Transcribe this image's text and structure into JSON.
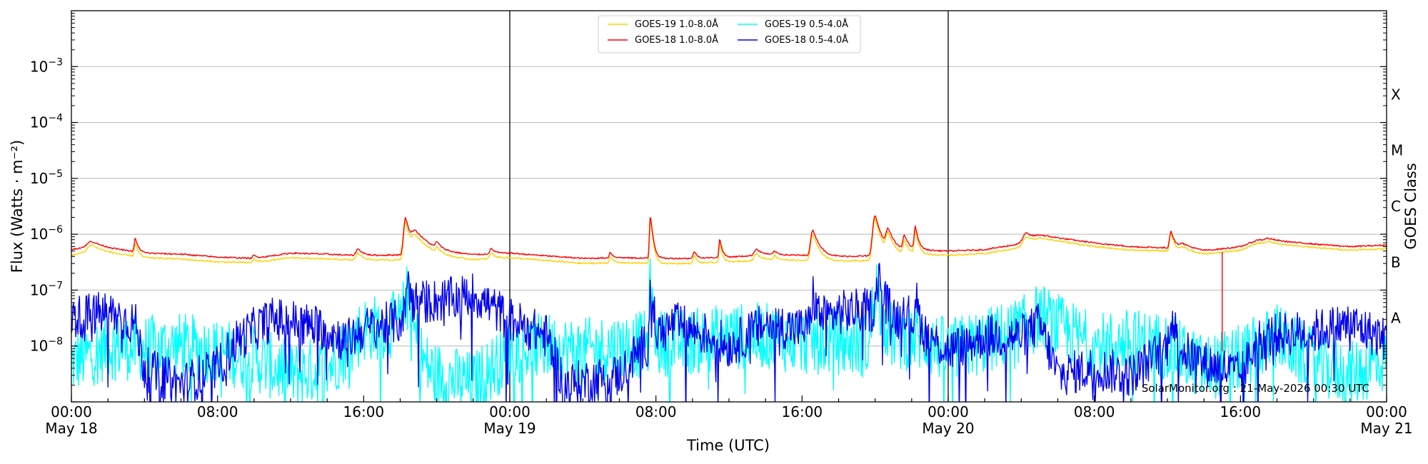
{
  "chart_data": {
    "type": "line",
    "ylabel": "Flux (Watts · m⁻²)",
    "xlabel": "Time (UTC)",
    "right_ylabel": "GOES Class",
    "y_scale": "log",
    "ylim": [
      1e-09,
      0.01
    ],
    "xlim_hours": [
      0,
      72
    ],
    "grid": "horizontal at decades",
    "legend_position": "top-center",
    "y_ticks": [
      {
        "exp": -3,
        "mant": "10",
        "sup": "−3"
      },
      {
        "exp": -4,
        "mant": "10",
        "sup": "−4"
      },
      {
        "exp": -5,
        "mant": "10",
        "sup": "−5"
      },
      {
        "exp": -6,
        "mant": "10",
        "sup": "−6"
      },
      {
        "exp": -7,
        "mant": "10",
        "sup": "−7"
      },
      {
        "exp": -8,
        "mant": "10",
        "sup": "−8"
      }
    ],
    "x_ticks": [
      {
        "hour": 0,
        "time": "00:00",
        "date": "May 18"
      },
      {
        "hour": 8,
        "time": "08:00",
        "date": ""
      },
      {
        "hour": 16,
        "time": "16:00",
        "date": ""
      },
      {
        "hour": 24,
        "time": "00:00",
        "date": "May 19"
      },
      {
        "hour": 32,
        "time": "08:00",
        "date": ""
      },
      {
        "hour": 40,
        "time": "16:00",
        "date": ""
      },
      {
        "hour": 48,
        "time": "00:00",
        "date": "May 20"
      },
      {
        "hour": 56,
        "time": "08:00",
        "date": ""
      },
      {
        "hour": 64,
        "time": "16:00",
        "date": ""
      },
      {
        "hour": 72,
        "time": "00:00",
        "date": "May 21"
      }
    ],
    "day_boundaries_hours": [
      24,
      48
    ],
    "goes_classes": [
      {
        "label": "A",
        "exp": -7.5
      },
      {
        "label": "B",
        "exp": -6.5
      },
      {
        "label": "C",
        "exp": -5.5
      },
      {
        "label": "M",
        "exp": -4.5
      },
      {
        "label": "X",
        "exp": -3.5
      }
    ],
    "credit": "SolarMonitor.org : 21-May-2026 00:30 UTC",
    "series": [
      {
        "name": "GOES-19 1.0-8.0Å",
        "color": "#ffd000",
        "baseline": [
          [
            0,
            4.2e-07
          ],
          [
            1,
            5e-07
          ],
          [
            2,
            4.6e-07
          ],
          [
            4,
            3.8e-07
          ],
          [
            6,
            3.6e-07
          ],
          [
            8,
            3.2e-07
          ],
          [
            10,
            3.1e-07
          ],
          [
            12,
            3.8e-07
          ],
          [
            14,
            3.6e-07
          ],
          [
            16,
            3.4e-07
          ],
          [
            18,
            3.5e-07
          ],
          [
            19,
            4.3e-07
          ],
          [
            22,
            3.5e-07
          ],
          [
            24,
            3.8e-07
          ],
          [
            26,
            3.4e-07
          ],
          [
            28,
            3e-07
          ],
          [
            30,
            3.1e-07
          ],
          [
            32,
            3e-07
          ],
          [
            34,
            3e-07
          ],
          [
            36,
            3.2e-07
          ],
          [
            38,
            3.5e-07
          ],
          [
            40,
            3.4e-07
          ],
          [
            42,
            3.3e-07
          ],
          [
            44,
            3.4e-07
          ],
          [
            46,
            4.5e-07
          ],
          [
            48,
            4.2e-07
          ],
          [
            50,
            4.5e-07
          ],
          [
            52,
            5.8e-07
          ],
          [
            53,
            8.5e-07
          ],
          [
            56,
            6e-07
          ],
          [
            58,
            5.2e-07
          ],
          [
            60,
            5e-07
          ],
          [
            62,
            4.3e-07
          ],
          [
            64,
            5.2e-07
          ],
          [
            65,
            7e-07
          ],
          [
            68,
            5.8e-07
          ],
          [
            70,
            5.2e-07
          ],
          [
            72,
            5.5e-07
          ]
        ],
        "peaks": [
          [
            1.1,
            6.5e-07,
            0.5
          ],
          [
            3.5,
            7e-07,
            0.15
          ],
          [
            10,
            3.6e-07,
            0.2
          ],
          [
            15.7,
            4.6e-07,
            0.3
          ],
          [
            18.3,
            1.7e-06,
            0.25
          ],
          [
            18.8,
            1e-06,
            0.6
          ],
          [
            20,
            6e-07,
            0.2
          ],
          [
            23,
            4.6e-07,
            0.25
          ],
          [
            29.5,
            4e-07,
            0.15
          ],
          [
            31.7,
            1.9e-06,
            0.12
          ],
          [
            34.1,
            4.2e-07,
            0.15
          ],
          [
            35.5,
            7.5e-07,
            0.12
          ],
          [
            37.5,
            4.5e-07,
            0.3
          ],
          [
            38.5,
            4.2e-07,
            0.2
          ],
          [
            40.6,
            1e-06,
            0.3
          ],
          [
            44,
            1.9e-06,
            0.3
          ],
          [
            44.7,
            1.1e-06,
            0.3
          ],
          [
            45.6,
            8e-07,
            0.2
          ],
          [
            46.2,
            1.2e-06,
            0.15
          ],
          [
            52.3,
            9e-07,
            0.5
          ],
          [
            60.2,
            1.05e-06,
            0.2
          ],
          [
            60.8,
            6e-07,
            0.5
          ],
          [
            65.5,
            7.5e-07,
            0.4
          ]
        ]
      },
      {
        "name": "GOES-18 1.0-8.0Å",
        "color": "#ff0000",
        "baseline": [
          [
            0,
            5.3e-07
          ],
          [
            1,
            6.2e-07
          ],
          [
            2,
            5.6e-07
          ],
          [
            4,
            4.6e-07
          ],
          [
            6,
            4.4e-07
          ],
          [
            8,
            3.9e-07
          ],
          [
            10,
            3.7e-07
          ],
          [
            12,
            4.6e-07
          ],
          [
            14,
            4.4e-07
          ],
          [
            16,
            4.1e-07
          ],
          [
            18,
            4.3e-07
          ],
          [
            19,
            5.2e-07
          ],
          [
            22,
            4.3e-07
          ],
          [
            24,
            4.6e-07
          ],
          [
            26,
            4.1e-07
          ],
          [
            28,
            3.7e-07
          ],
          [
            30,
            3.8e-07
          ],
          [
            32,
            3.7e-07
          ],
          [
            34,
            3.7e-07
          ],
          [
            36,
            3.9e-07
          ],
          [
            38,
            4.3e-07
          ],
          [
            40,
            4.2e-07
          ],
          [
            42,
            4e-07
          ],
          [
            44,
            4.1e-07
          ],
          [
            46,
            5.3e-07
          ],
          [
            48,
            5e-07
          ],
          [
            50,
            5.3e-07
          ],
          [
            52,
            6.8e-07
          ],
          [
            53,
            9.5e-07
          ],
          [
            56,
            7e-07
          ],
          [
            58,
            6e-07
          ],
          [
            60,
            5.7e-07
          ],
          [
            62,
            5e-07
          ],
          [
            64,
            6e-07
          ],
          [
            65,
            8e-07
          ],
          [
            68,
            6.7e-07
          ],
          [
            70,
            6e-07
          ],
          [
            72,
            6.4e-07
          ]
        ],
        "peaks": [
          [
            1.1,
            7.5e-07,
            0.5
          ],
          [
            3.5,
            8.5e-07,
            0.15
          ],
          [
            10,
            4.2e-07,
            0.2
          ],
          [
            15.7,
            5.5e-07,
            0.3
          ],
          [
            18.3,
            2e-06,
            0.25
          ],
          [
            18.8,
            1.2e-06,
            0.6
          ],
          [
            20,
            7.5e-07,
            0.2
          ],
          [
            23,
            5.5e-07,
            0.25
          ],
          [
            29.5,
            4.8e-07,
            0.15
          ],
          [
            31.7,
            2.2e-06,
            0.12
          ],
          [
            34.1,
            5e-07,
            0.15
          ],
          [
            35.5,
            8.5e-07,
            0.12
          ],
          [
            37.5,
            5.5e-07,
            0.3
          ],
          [
            38.5,
            5e-07,
            0.2
          ],
          [
            40.6,
            1.2e-06,
            0.3
          ],
          [
            44,
            2.2e-06,
            0.3
          ],
          [
            44.7,
            1.3e-06,
            0.3
          ],
          [
            45.6,
            1e-06,
            0.2
          ],
          [
            46.2,
            1.4e-06,
            0.15
          ],
          [
            52.3,
            1.05e-06,
            0.5
          ],
          [
            60.2,
            1.15e-06,
            0.2
          ],
          [
            60.8,
            7e-07,
            0.5
          ],
          [
            65.5,
            8.5e-07,
            0.4
          ]
        ],
        "spikes": [
          [
            63,
            4.8e-07,
            8e-09
          ]
        ]
      },
      {
        "name": "GOES-19 0.5-4.0Å",
        "color": "#00ffff",
        "baseline": [
          [
            0,
            5e-09
          ],
          [
            2,
            1e-08
          ],
          [
            4,
            9e-09
          ],
          [
            6,
            1e-08
          ],
          [
            8,
            8e-09
          ],
          [
            10,
            6e-09
          ],
          [
            12,
            3e-09
          ],
          [
            14,
            4e-09
          ],
          [
            16,
            2e-08
          ],
          [
            18,
            2.5e-08
          ],
          [
            19,
            4e-09
          ],
          [
            20,
            3e-09
          ],
          [
            22,
            2e-09
          ],
          [
            24,
            8e-09
          ],
          [
            26,
            1e-08
          ],
          [
            28,
            8e-09
          ],
          [
            30,
            1e-08
          ],
          [
            32,
            1.1e-08
          ],
          [
            34,
            1.2e-08
          ],
          [
            36,
            1.5e-08
          ],
          [
            38,
            1.5e-08
          ],
          [
            40,
            1.2e-08
          ],
          [
            42,
            1.2e-08
          ],
          [
            44,
            1e-08
          ],
          [
            46,
            1.5e-08
          ],
          [
            48,
            8e-09
          ],
          [
            50,
            1.2e-08
          ],
          [
            52,
            2e-08
          ],
          [
            53,
            3e-08
          ],
          [
            54,
            2e-08
          ],
          [
            56,
            1e-08
          ],
          [
            58,
            1.2e-08
          ],
          [
            60,
            1e-08
          ],
          [
            62,
            4e-09
          ],
          [
            64,
            6e-09
          ],
          [
            66,
            1.5e-08
          ],
          [
            68,
            5e-09
          ],
          [
            70,
            3e-09
          ],
          [
            72,
            6e-09
          ]
        ],
        "peaks": [
          [
            18.3,
            9e-08,
            0.25
          ],
          [
            31.7,
            1.2e-07,
            0.1
          ],
          [
            44,
            1.5e-07,
            0.25
          ],
          [
            53,
            3.5e-08,
            0.5
          ]
        ],
        "noise": 0.6
      },
      {
        "name": "GOES-18 0.5-4.0Å",
        "color": "#0000ee",
        "baseline": [
          [
            0,
            3.2e-08
          ],
          [
            2,
            4e-08
          ],
          [
            3.5,
            2.5e-08
          ],
          [
            4,
            4e-09
          ],
          [
            6,
            2e-09
          ],
          [
            8,
            4e-09
          ],
          [
            9,
            1.2e-08
          ],
          [
            10,
            2e-08
          ],
          [
            11,
            3e-08
          ],
          [
            12,
            2.8e-08
          ],
          [
            14,
            2e-08
          ],
          [
            15,
            1.2e-08
          ],
          [
            16,
            2e-08
          ],
          [
            18,
            2.8e-08
          ],
          [
            19,
            6e-08
          ],
          [
            21,
            7e-08
          ],
          [
            22,
            8.5e-08
          ],
          [
            24,
            3e-08
          ],
          [
            26,
            1.5e-08
          ],
          [
            27,
            2e-09
          ],
          [
            30,
            3e-09
          ],
          [
            31,
            8e-09
          ],
          [
            33,
            2.5e-08
          ],
          [
            35,
            1.5e-08
          ],
          [
            36,
            1e-08
          ],
          [
            38,
            2.5e-08
          ],
          [
            40,
            2e-08
          ],
          [
            42,
            4e-08
          ],
          [
            44,
            4.5e-08
          ],
          [
            46,
            2.5e-08
          ],
          [
            48,
            8e-09
          ],
          [
            50,
            1.5e-08
          ],
          [
            52,
            1.5e-08
          ],
          [
            53,
            2.5e-08
          ],
          [
            54,
            3e-09
          ],
          [
            56,
            4e-09
          ],
          [
            58,
            3e-09
          ],
          [
            60,
            1e-08
          ],
          [
            62,
            5e-09
          ],
          [
            63,
            4e-09
          ],
          [
            64,
            3e-09
          ],
          [
            65,
            1.3e-08
          ],
          [
            66,
            1.6e-08
          ],
          [
            68,
            1.8e-08
          ],
          [
            70,
            2.5e-08
          ],
          [
            72,
            1.3e-08
          ]
        ],
        "peaks": [
          [
            18.4,
            1.5e-07,
            0.2
          ],
          [
            31.7,
            1.7e-07,
            0.1
          ],
          [
            40.6,
            8e-08,
            0.2
          ],
          [
            44.2,
            2.2e-07,
            0.2
          ],
          [
            45.5,
            7e-08,
            0.2
          ],
          [
            46.2,
            9e-08,
            0.12
          ],
          [
            60.2,
            4e-08,
            0.2
          ]
        ],
        "noise": 0.4
      }
    ]
  }
}
